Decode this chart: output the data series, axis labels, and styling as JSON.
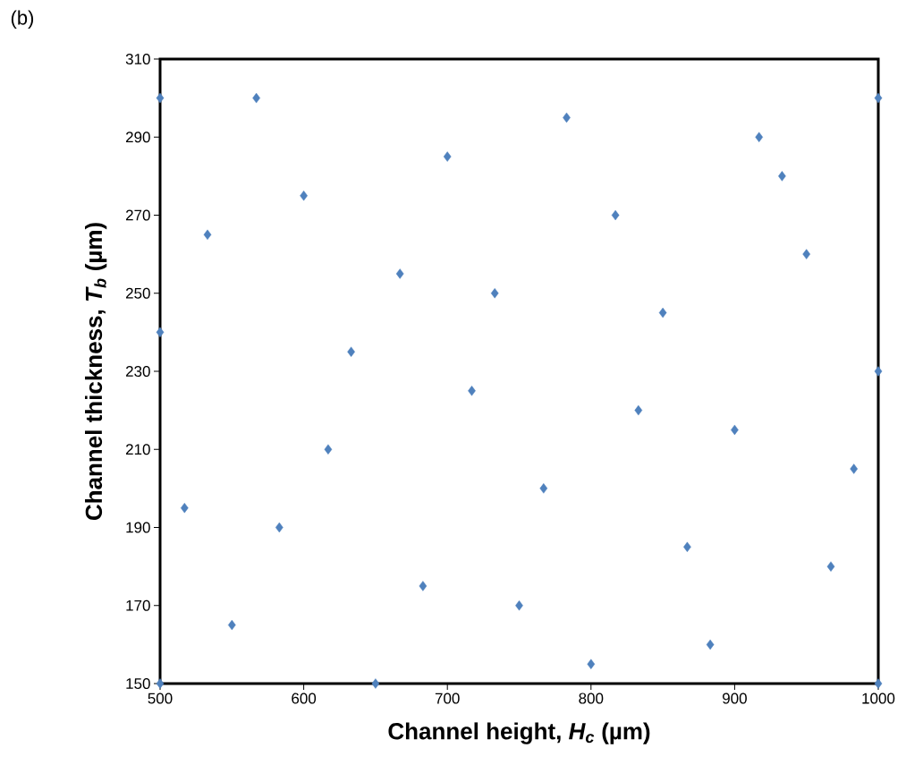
{
  "chart_data": {
    "type": "scatter",
    "xlabel": "Channel height, *H$_{c}$* (µm)",
    "ylabel": "Channel thickness, *T$_{b}$* (µm)",
    "annotations": [
      "(b)"
    ],
    "x": [
      500,
      567,
      783,
      700,
      917,
      933,
      600,
      817,
      533,
      950,
      667,
      733,
      850,
      500,
      633,
      1000,
      717,
      833,
      900,
      617,
      983,
      767,
      517,
      583,
      967,
      867,
      683,
      750,
      550,
      883,
      800,
      500,
      650,
      1000,
      1000
    ],
    "series": [
      {
        "color": "#4f81bd",
        "values": [
          300,
          300,
          295,
          285,
          290,
          280,
          275,
          270,
          265,
          260,
          255,
          250,
          245,
          240,
          235,
          230,
          225,
          220,
          215,
          210,
          205,
          200,
          195,
          190,
          180,
          185,
          175,
          170,
          165,
          160,
          155,
          150,
          150,
          150,
          300
        ]
      }
    ],
    "xlim": [
      500,
      1000
    ],
    "xticks": [
      500,
      600,
      700,
      800,
      900,
      1000
    ],
    "ylim": [
      150,
      310
    ],
    "yticks": [
      150,
      170,
      190,
      210,
      230,
      250,
      270,
      290,
      310
    ],
    "marker": "diamond",
    "grid": false
  }
}
